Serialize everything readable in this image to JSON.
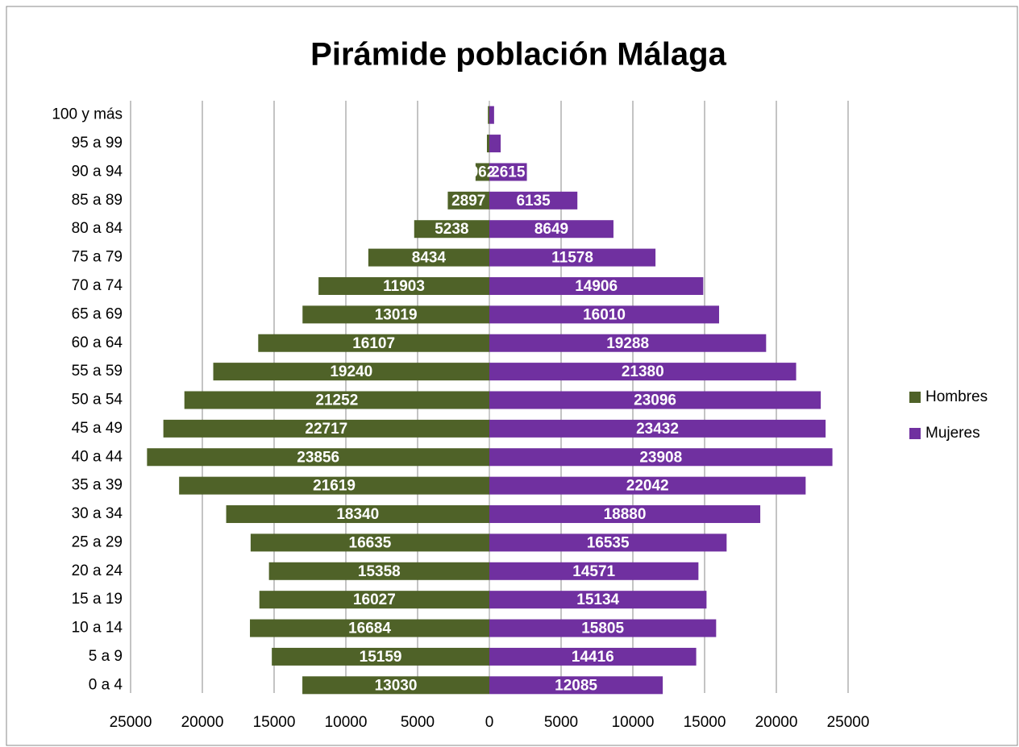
{
  "chart_data": {
    "type": "pyramid",
    "title": "Pirámide población Málaga",
    "categories": [
      "0 a 4",
      "5 a 9",
      "10 a 14",
      "15 a 19",
      "20 a 24",
      "25 a 29",
      "30 a 34",
      "35 a 39",
      "40 a 44",
      "45 a 49",
      "50 a 54",
      "55 a 59",
      "60 a 64",
      "65 a 69",
      "70 a 74",
      "75 a 79",
      "80 a 84",
      "85 a 89",
      "90 a 94",
      "95 a 99",
      "100 y más"
    ],
    "series": [
      {
        "name": "Hombres",
        "color": "#4f6228",
        "values": [
          -13030,
          -15159,
          -16684,
          -16027,
          -15358,
          -16635,
          -18340,
          -21619,
          -23856,
          -22717,
          -21252,
          -19240,
          -16107,
          -13019,
          -11903,
          -8434,
          -5238,
          -2897,
          -962,
          -170,
          -100
        ],
        "value_labels": [
          "13030",
          "15159",
          "16684",
          "16027",
          "15358",
          "16635",
          "18340",
          "21619",
          "23856",
          "22717",
          "21252",
          "19240",
          "16107",
          "13019",
          "11903",
          "8434",
          "5238",
          "2897",
          "962",
          null,
          null
        ]
      },
      {
        "name": "Mujeres",
        "color": "#7030a0",
        "values": [
          12085,
          14416,
          15805,
          15134,
          14571,
          16535,
          18880,
          22042,
          23908,
          23432,
          23096,
          21380,
          19288,
          16010,
          14906,
          11578,
          8649,
          6135,
          2615,
          790,
          330
        ],
        "value_labels": [
          "12085",
          "14416",
          "15805",
          "15134",
          "14571",
          "16535",
          "18880",
          "22042",
          "23908",
          "23432",
          "23096",
          "21380",
          "19288",
          "16010",
          "14906",
          "11578",
          "8649",
          "6135",
          "2615",
          null,
          null
        ]
      }
    ],
    "xlim": [
      -25000,
      25000
    ],
    "xticks": [
      {
        "value": -25000,
        "label": "25000"
      },
      {
        "value": -20000,
        "label": "20000"
      },
      {
        "value": -15000,
        "label": "15000"
      },
      {
        "value": -10000,
        "label": "10000"
      },
      {
        "value": -5000,
        "label": "5000"
      },
      0,
      5000,
      10000,
      15000,
      20000,
      25000
    ],
    "grid": true,
    "legend": "right"
  }
}
